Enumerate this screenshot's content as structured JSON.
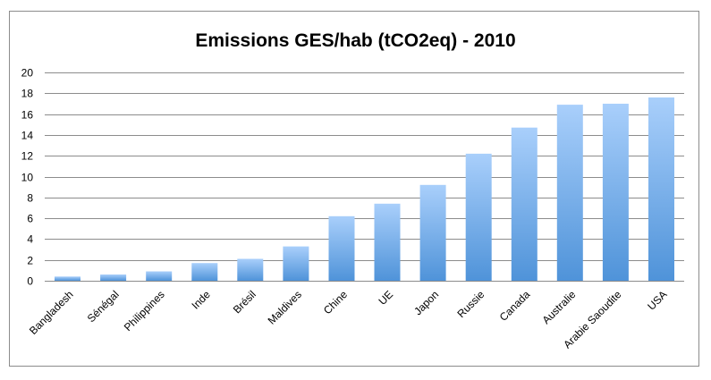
{
  "chart_data": {
    "type": "bar",
    "title": "Emissions GES/hab (tCO2eq) - 2010",
    "xlabel": "",
    "ylabel": "",
    "categories": [
      "Bangladesh",
      "Sénégal",
      "Philippines",
      "Inde",
      "Brésil",
      "Maldives",
      "Chine",
      "UE",
      "Japon",
      "Russie",
      "Canada",
      "Australie",
      "Arabie Saoudite",
      "USA"
    ],
    "values": [
      0.4,
      0.6,
      0.9,
      1.7,
      2.1,
      3.3,
      6.2,
      7.4,
      9.2,
      12.2,
      14.7,
      16.9,
      17.0,
      17.6
    ],
    "ylim": [
      0,
      20
    ],
    "yticks": [
      "0",
      "2",
      "4",
      "6",
      "8",
      "10",
      "12",
      "14",
      "16",
      "18",
      "20"
    ],
    "grid": true,
    "legend": "none",
    "bar_color_top": "#a9cffb",
    "bar_color_bottom": "#4f93d9"
  }
}
